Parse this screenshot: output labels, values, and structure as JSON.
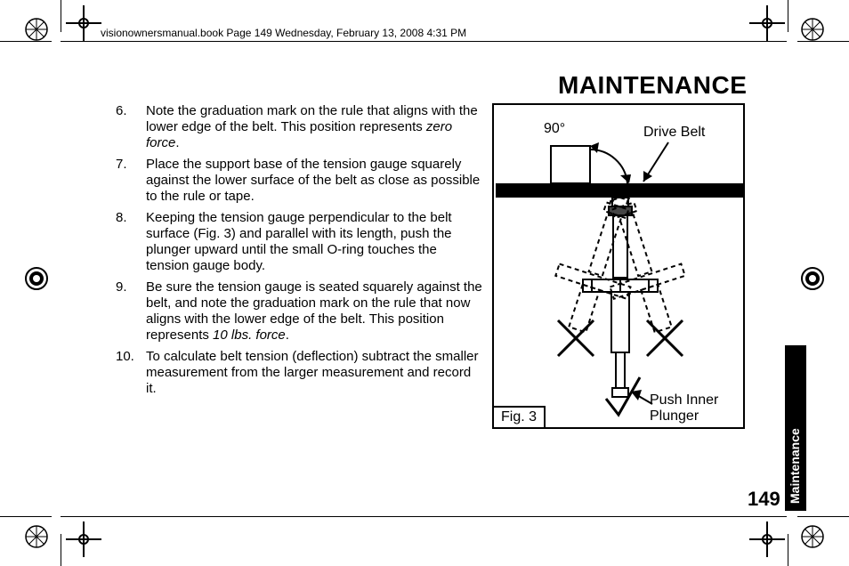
{
  "header": {
    "text": "visionownersmanual.book  Page 149  Wednesday, February 13, 2008  4:31 PM"
  },
  "title": "MAINTENANCE",
  "page_number": "149",
  "tab_label": "Maintenance",
  "list": {
    "items": [
      {
        "num": "6.",
        "html": "Note the graduation mark on the rule that aligns with the lower edge of the belt. This position represents <i>zero force</i>."
      },
      {
        "num": "7.",
        "html": "Place the support base of the tension gauge squarely against the lower surface of the belt as close as possible to the rule or tape."
      },
      {
        "num": "8.",
        "html": "Keeping the tension gauge perpendicular to the belt surface (Fig. 3) and parallel with its length, push the plunger upward until the small O-ring touches the tension gauge body."
      },
      {
        "num": "9.",
        "html": "Be sure the tension gauge is seated squarely against the belt, and note the graduation mark on the rule that now aligns with the lower edge of the belt. This position represents <i>10 lbs. force</i>."
      },
      {
        "num": "10.",
        "html": "To calculate belt tension (deflection) subtract the smaller measurement from the larger measurement and record it."
      }
    ]
  },
  "figure": {
    "label": "Fig. 3",
    "angle": "90°",
    "drive_belt": "Drive Belt",
    "push_inner": "Push Inner",
    "plunger": "Plunger",
    "colors": {
      "stroke": "#000000",
      "belt_fill": "#000000",
      "bg": "#ffffff"
    }
  }
}
